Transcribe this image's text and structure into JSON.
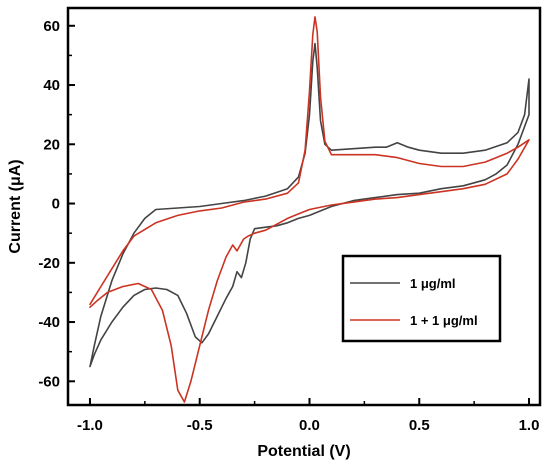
{
  "chart_data": {
    "type": "line",
    "xlabel": "Potential (V)",
    "ylabel": "Current (μA)",
    "xlim": [
      -1.1,
      1.05
    ],
    "ylim": [
      -68,
      66
    ],
    "x_ticks": [
      -1.0,
      -0.5,
      0.0,
      0.5,
      1.0
    ],
    "x_tick_labels": [
      "-1.0",
      "-0.5",
      "0.0",
      "0.5",
      "1.0"
    ],
    "y_ticks": [
      -60,
      -40,
      -20,
      0,
      20,
      40,
      60
    ],
    "y_tick_labels": [
      "-60",
      "-40",
      "-20",
      "0",
      "20",
      "40",
      "60"
    ],
    "grid": false,
    "legend_position": "center-right",
    "series": [
      {
        "name": "1 μg/ml",
        "color": "#444444",
        "points": [
          [
            -1.0,
            -55
          ],
          [
            -0.98,
            -48
          ],
          [
            -0.95,
            -38
          ],
          [
            -0.9,
            -26
          ],
          [
            -0.85,
            -17
          ],
          [
            -0.8,
            -10
          ],
          [
            -0.75,
            -5
          ],
          [
            -0.7,
            -2
          ],
          [
            -0.6,
            -1.5
          ],
          [
            -0.5,
            -1
          ],
          [
            -0.4,
            0
          ],
          [
            -0.3,
            1
          ],
          [
            -0.2,
            2.5
          ],
          [
            -0.1,
            5
          ],
          [
            -0.05,
            9
          ],
          [
            -0.02,
            17
          ],
          [
            0.0,
            30
          ],
          [
            0.015,
            48
          ],
          [
            0.025,
            54
          ],
          [
            0.035,
            46
          ],
          [
            0.05,
            28
          ],
          [
            0.07,
            20
          ],
          [
            0.1,
            18
          ],
          [
            0.2,
            18.5
          ],
          [
            0.3,
            19
          ],
          [
            0.35,
            19
          ],
          [
            0.4,
            20.5
          ],
          [
            0.45,
            19
          ],
          [
            0.5,
            18
          ],
          [
            0.6,
            17
          ],
          [
            0.7,
            17
          ],
          [
            0.8,
            18
          ],
          [
            0.9,
            20.5
          ],
          [
            0.95,
            24
          ],
          [
            0.98,
            30
          ],
          [
            1.0,
            42
          ],
          [
            1.0,
            30
          ],
          [
            0.95,
            20
          ],
          [
            0.9,
            13
          ],
          [
            0.85,
            10
          ],
          [
            0.8,
            8
          ],
          [
            0.7,
            6
          ],
          [
            0.6,
            5
          ],
          [
            0.5,
            3.5
          ],
          [
            0.4,
            3
          ],
          [
            0.3,
            2
          ],
          [
            0.2,
            1
          ],
          [
            0.1,
            -1
          ],
          [
            0.05,
            -2.5
          ],
          [
            0.0,
            -4
          ],
          [
            -0.05,
            -5
          ],
          [
            -0.1,
            -6.5
          ],
          [
            -0.15,
            -7.5
          ],
          [
            -0.2,
            -8
          ],
          [
            -0.25,
            -8.5
          ],
          [
            -0.27,
            -12
          ],
          [
            -0.29,
            -20
          ],
          [
            -0.31,
            -25
          ],
          [
            -0.33,
            -23
          ],
          [
            -0.35,
            -28
          ],
          [
            -0.38,
            -32
          ],
          [
            -0.42,
            -38
          ],
          [
            -0.46,
            -44
          ],
          [
            -0.49,
            -47
          ],
          [
            -0.52,
            -45
          ],
          [
            -0.56,
            -37
          ],
          [
            -0.6,
            -31
          ],
          [
            -0.65,
            -29
          ],
          [
            -0.7,
            -28.5
          ],
          [
            -0.75,
            -29
          ],
          [
            -0.8,
            -31
          ],
          [
            -0.85,
            -35
          ],
          [
            -0.9,
            -40
          ],
          [
            -0.95,
            -46
          ],
          [
            -0.98,
            -51
          ],
          [
            -1.0,
            -55
          ]
        ]
      },
      {
        "name": "1 + 1 μg/ml",
        "color": "#cc3322",
        "points": [
          [
            -1.0,
            -34
          ],
          [
            -0.95,
            -28
          ],
          [
            -0.9,
            -22
          ],
          [
            -0.85,
            -16
          ],
          [
            -0.8,
            -11
          ],
          [
            -0.7,
            -6.5
          ],
          [
            -0.6,
            -4
          ],
          [
            -0.5,
            -2.5
          ],
          [
            -0.4,
            -1.5
          ],
          [
            -0.3,
            0.5
          ],
          [
            -0.2,
            1.5
          ],
          [
            -0.1,
            3.5
          ],
          [
            -0.05,
            7
          ],
          [
            -0.02,
            18
          ],
          [
            0.0,
            38
          ],
          [
            0.015,
            57
          ],
          [
            0.025,
            63
          ],
          [
            0.035,
            58
          ],
          [
            0.05,
            36
          ],
          [
            0.07,
            21
          ],
          [
            0.1,
            16.5
          ],
          [
            0.2,
            16.5
          ],
          [
            0.3,
            16.5
          ],
          [
            0.4,
            15.5
          ],
          [
            0.5,
            13.5
          ],
          [
            0.6,
            12.5
          ],
          [
            0.7,
            12.5
          ],
          [
            0.8,
            14
          ],
          [
            0.9,
            17
          ],
          [
            0.95,
            19
          ],
          [
            1.0,
            21.5
          ],
          [
            0.95,
            15
          ],
          [
            0.9,
            10
          ],
          [
            0.8,
            6.5
          ],
          [
            0.7,
            5
          ],
          [
            0.6,
            4
          ],
          [
            0.5,
            3
          ],
          [
            0.4,
            2
          ],
          [
            0.3,
            1.5
          ],
          [
            0.2,
            0.5
          ],
          [
            0.1,
            -0.5
          ],
          [
            0.0,
            -2
          ],
          [
            -0.05,
            -3.5
          ],
          [
            -0.1,
            -5
          ],
          [
            -0.15,
            -7
          ],
          [
            -0.2,
            -9
          ],
          [
            -0.25,
            -10
          ],
          [
            -0.28,
            -11
          ],
          [
            -0.3,
            -12
          ],
          [
            -0.33,
            -16
          ],
          [
            -0.35,
            -14
          ],
          [
            -0.38,
            -18
          ],
          [
            -0.42,
            -26
          ],
          [
            -0.46,
            -36
          ],
          [
            -0.5,
            -48
          ],
          [
            -0.54,
            -60
          ],
          [
            -0.57,
            -67
          ],
          [
            -0.6,
            -63
          ],
          [
            -0.63,
            -48
          ],
          [
            -0.67,
            -36
          ],
          [
            -0.72,
            -29
          ],
          [
            -0.78,
            -27
          ],
          [
            -0.85,
            -28
          ],
          [
            -0.92,
            -30
          ],
          [
            -0.97,
            -33
          ],
          [
            -1.0,
            -35
          ]
        ]
      }
    ],
    "legend_items": [
      {
        "label": "1 μg/ml",
        "color": "#444444"
      },
      {
        "label": "1 + 1 μg/ml",
        "color": "#cc3322"
      }
    ]
  }
}
